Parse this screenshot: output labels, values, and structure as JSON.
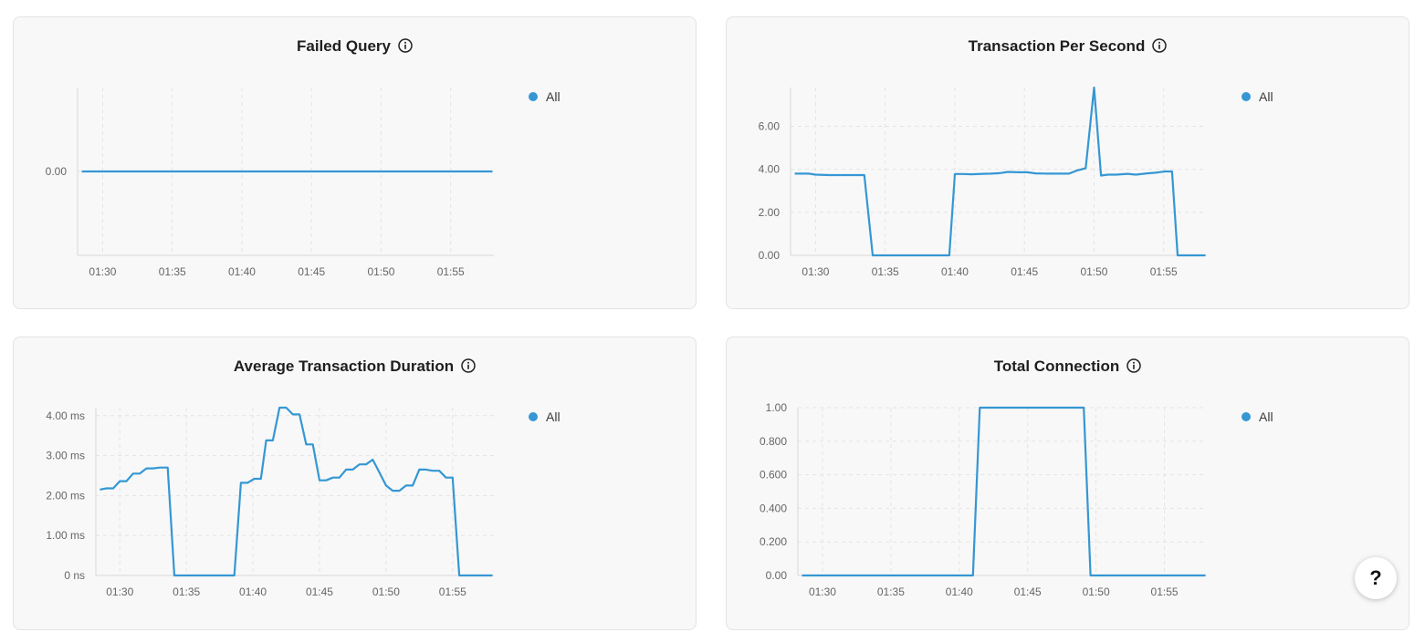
{
  "accent_color": "#3597d3",
  "panels": [
    {
      "id": "failed_query",
      "title": "Failed Query",
      "legend_label": "All",
      "info_icon": "info-circle-icon"
    },
    {
      "id": "tps",
      "title": "Transaction Per Second",
      "legend_label": "All",
      "info_icon": "info-circle-icon"
    },
    {
      "id": "avg_duration",
      "title": "Average Transaction Duration",
      "legend_label": "All",
      "info_icon": "info-circle-icon"
    },
    {
      "id": "total_conn",
      "title": "Total Connection",
      "legend_label": "All",
      "info_icon": "info-circle-icon"
    }
  ],
  "help_button": {
    "label": "?"
  },
  "chart_data": [
    {
      "type": "line",
      "title": "Failed Query",
      "x_unit": "minutes",
      "xlim": [
        88.2,
        118.1
      ],
      "x_ticks": [
        "01:30",
        "01:35",
        "01:40",
        "01:45",
        "01:50",
        "01:55"
      ],
      "x_tick_values": [
        90,
        95,
        100,
        105,
        110,
        115
      ],
      "ylim": [
        -1,
        1
      ],
      "y_ticks": [
        "0.00"
      ],
      "y_tick_values": [
        0
      ],
      "grid": true,
      "legend": "top-right",
      "series": [
        {
          "name": "All",
          "x": [
            88.5,
            118.0
          ],
          "y": [
            0,
            0
          ]
        }
      ]
    },
    {
      "type": "line",
      "title": "Transaction Per Second",
      "xlim": [
        88.2,
        118.1
      ],
      "x_ticks": [
        "01:30",
        "01:35",
        "01:40",
        "01:45",
        "01:50",
        "01:55"
      ],
      "x_tick_values": [
        90,
        95,
        100,
        105,
        110,
        115
      ],
      "ylim": [
        0,
        7.8
      ],
      "y_ticks": [
        "0.00",
        "2.00",
        "4.00",
        "6.00"
      ],
      "y_tick_values": [
        0,
        2,
        4,
        6
      ],
      "grid": true,
      "legend": "top-right",
      "series": [
        {
          "name": "All",
          "x": [
            88.5,
            89.5,
            90.0,
            91.0,
            92.0,
            93.0,
            93.5,
            94.1,
            95.0,
            96.0,
            97.0,
            98.0,
            99.0,
            99.6,
            100.0,
            100.6,
            101.2,
            102.0,
            102.6,
            103.2,
            103.8,
            104.6,
            105.2,
            105.8,
            106.6,
            107.4,
            108.2,
            108.8,
            109.4,
            110.0,
            110.5,
            111.0,
            111.6,
            112.4,
            113.0,
            113.8,
            114.4,
            115.1,
            115.6,
            116.0,
            117.0,
            118.0
          ],
          "y": [
            3.8,
            3.8,
            3.75,
            3.73,
            3.73,
            3.73,
            3.73,
            0,
            0,
            0,
            0,
            0,
            0,
            0,
            3.78,
            3.78,
            3.77,
            3.79,
            3.8,
            3.82,
            3.88,
            3.86,
            3.86,
            3.81,
            3.8,
            3.8,
            3.8,
            3.95,
            4.05,
            7.8,
            3.71,
            3.75,
            3.75,
            3.79,
            3.75,
            3.81,
            3.84,
            3.9,
            3.9,
            0,
            0,
            0
          ]
        }
      ]
    },
    {
      "type": "line",
      "title": "Average Transaction Duration",
      "xlim": [
        88.2,
        118.1
      ],
      "x_ticks": [
        "01:30",
        "01:35",
        "01:40",
        "01:45",
        "01:50",
        "01:55"
      ],
      "x_tick_values": [
        90,
        95,
        100,
        105,
        110,
        115
      ],
      "ylim": [
        0,
        4.2
      ],
      "y_ticks": [
        "0 ns",
        "1.00 ms",
        "2.00 ms",
        "3.00 ms",
        "4.00 ms"
      ],
      "y_tick_values": [
        0,
        1,
        2,
        3,
        4
      ],
      "grid": true,
      "legend": "top-right",
      "series": [
        {
          "name": "All",
          "x": [
            88.5,
            89.0,
            89.5,
            90.0,
            90.5,
            91.0,
            91.5,
            92.0,
            92.5,
            93.0,
            93.6,
            94.1,
            95.0,
            96.0,
            97.0,
            98.0,
            98.6,
            99.1,
            99.6,
            100.1,
            100.6,
            101.0,
            101.5,
            102.0,
            102.5,
            103.0,
            103.5,
            104.0,
            104.5,
            105.0,
            105.5,
            106.0,
            106.5,
            107.0,
            107.5,
            108.0,
            108.5,
            109.0,
            109.5,
            110.0,
            110.5,
            111.0,
            111.5,
            112.0,
            112.5,
            113.0,
            113.5,
            114.0,
            114.5,
            115.0,
            115.5,
            116.0,
            117.0,
            118.0
          ],
          "y": [
            2.15,
            2.18,
            2.18,
            2.36,
            2.36,
            2.55,
            2.55,
            2.68,
            2.68,
            2.7,
            2.7,
            0,
            0,
            0,
            0,
            0,
            0,
            2.32,
            2.32,
            2.42,
            2.42,
            3.38,
            3.38,
            4.2,
            4.2,
            4.03,
            4.03,
            3.28,
            3.28,
            2.38,
            2.38,
            2.45,
            2.45,
            2.65,
            2.65,
            2.78,
            2.78,
            2.9,
            2.58,
            2.25,
            2.12,
            2.12,
            2.25,
            2.25,
            2.65,
            2.65,
            2.62,
            2.62,
            2.45,
            2.45,
            0,
            0,
            0,
            0
          ]
        }
      ]
    },
    {
      "type": "line",
      "title": "Total Connection",
      "xlim": [
        88.2,
        118.1
      ],
      "x_ticks": [
        "01:30",
        "01:35",
        "01:40",
        "01:45",
        "01:50",
        "01:55"
      ],
      "x_tick_values": [
        90,
        95,
        100,
        105,
        110,
        115
      ],
      "ylim": [
        0,
        1.0
      ],
      "y_ticks": [
        "0.00",
        "0.200",
        "0.400",
        "0.600",
        "0.800",
        "1.00"
      ],
      "y_tick_values": [
        0,
        0.2,
        0.4,
        0.6,
        0.8,
        1.0
      ],
      "grid": true,
      "legend": "top-right",
      "series": [
        {
          "name": "All",
          "x": [
            88.5,
            101.0,
            101.5,
            109.1,
            109.6,
            118.0
          ],
          "y": [
            0,
            0,
            1,
            1,
            0,
            0
          ]
        }
      ]
    }
  ]
}
